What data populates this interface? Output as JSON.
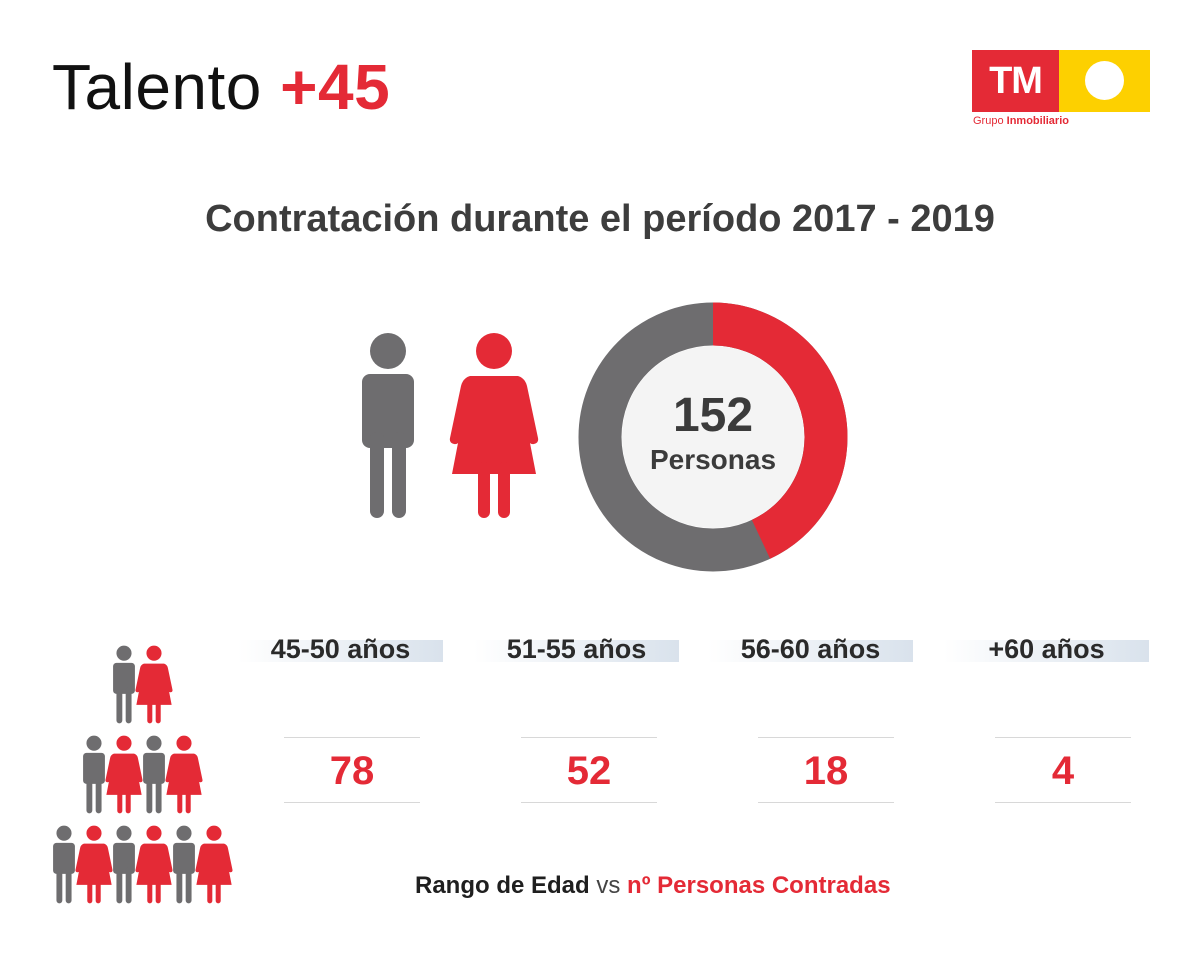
{
  "header": {
    "title_main": "Talento ",
    "title_plus": "+45"
  },
  "logo": {
    "mark": "TM",
    "subtitle_a": "Grupo ",
    "subtitle_b": "Inmobiliario"
  },
  "heading": "Contratación durante el período 2017 - 2019",
  "total": {
    "value": "152",
    "label": "Personas"
  },
  "donut": {
    "red_fraction": 0.43,
    "grey_color": "#6e6d6f",
    "red_color": "#e42a36"
  },
  "age_ranges": [
    {
      "label": "45-50 años",
      "count": "78"
    },
    {
      "label": "51-55 años",
      "count": "52"
    },
    {
      "label": "56-60 años",
      "count": "18"
    },
    {
      "label": "+60 años",
      "count": "4"
    }
  ],
  "footer": {
    "part1": "Rango de Edad",
    "part2": " vs ",
    "part3": "nº Personas Contradas"
  },
  "icons": [
    "male-icon",
    "female-icon",
    "people-pyramid-icon"
  ]
}
